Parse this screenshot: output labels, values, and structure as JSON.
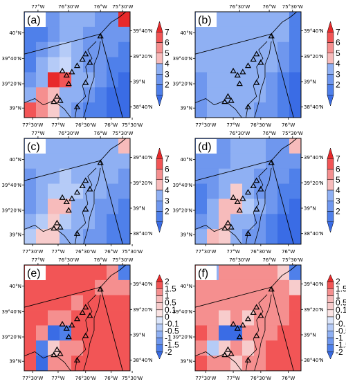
{
  "figure": {
    "panels": [
      {
        "label": "(a)",
        "grid": [
          [
            "#6f97ee",
            "#6f97ee",
            "#6f97ee",
            "#8fb0f3",
            "#8fb0f3",
            "#8fb0f3",
            "#6f97ee",
            "#6f97ee",
            "#e8292a"
          ],
          [
            "#4f80ea",
            "#4f80ea",
            "#6f97ee",
            "#8fb0f3",
            "#8fb0f3",
            "#6f97ee",
            "#6f97ee",
            "#6f97ee",
            "#6f97ee"
          ],
          [
            "#4f80ea",
            "#6f97ee",
            "#8fb0f3",
            "#b5cbf7",
            "#8fb0f3",
            "#6f97ee",
            "#6f97ee",
            "#6f97ee",
            "#4f80ea"
          ],
          [
            "#4f80ea",
            "#8fb0f3",
            "#b5cbf7",
            "#c9d8fa",
            "#8fb0f3",
            "#6f97ee",
            "#6f97ee",
            "#4f80ea",
            "#4f80ea"
          ],
          [
            "#6f97ee",
            "#8fb0f3",
            "#e8292a",
            "#f25556",
            "#8fb0f3",
            "#8fb0f3",
            "#6f97ee",
            "#4f80ea",
            "#3a6ce5"
          ],
          [
            "#8fb0f3",
            "#f58f8f",
            "#f7bbbb",
            "#8fb0f3",
            "#8fb0f3",
            "#6f97ee",
            "#4f80ea",
            "#3a6ce5",
            "#3a6ce5"
          ],
          [
            "#f25556",
            "#f58f8f",
            "#f7cccc",
            "#8fb0f3",
            "#6f97ee",
            "#4f80ea",
            "#4f80ea",
            "#3a6ce5",
            "#3a6ce5"
          ]
        ]
      },
      {
        "label": "(b)",
        "grid": [
          [
            "#8fb0f3",
            "#8fb0f3",
            "#8fb0f3",
            "#8fb0f3",
            "#8fb0f3",
            "#8fb0f3",
            "#8fb0f3",
            "#8fb0f3",
            "#4f80ea"
          ],
          [
            "#8fb0f3",
            "#8fb0f3",
            "#8fb0f3",
            "#8fb0f3",
            "#8fb0f3",
            "#8fb0f3",
            "#8fb0f3",
            "#8fb0f3",
            "#4f80ea"
          ],
          [
            "#8fb0f3",
            "#8fb0f3",
            "#8fb0f3",
            "#8fb0f3",
            "#8fb0f3",
            "#8fb0f3",
            "#8fb0f3",
            "#6f97ee",
            "#4f80ea"
          ],
          [
            "#8fb0f3",
            "#8fb0f3",
            "#8fb0f3",
            "#8fb0f3",
            "#8fb0f3",
            "#8fb0f3",
            "#8fb0f3",
            "#6f97ee",
            "#4f80ea"
          ],
          [
            "#6f97ee",
            "#8fb0f3",
            "#8fb0f3",
            "#8fb0f3",
            "#8fb0f3",
            "#8fb0f3",
            "#6f97ee",
            "#4f80ea",
            "#3a6ce5"
          ],
          [
            "#6f97ee",
            "#8fb0f3",
            "#8fb0f3",
            "#8fb0f3",
            "#8fb0f3",
            "#8fb0f3",
            "#6f97ee",
            "#4f80ea",
            "#3a6ce5"
          ],
          [
            "#6f97ee",
            "#8fb0f3",
            "#8fb0f3",
            "#8fb0f3",
            "#8fb0f3",
            "#6f97ee",
            "#6f97ee",
            "#4f80ea",
            "#3a6ce5"
          ]
        ]
      },
      {
        "label": "(c)",
        "grid": [
          [
            "#8fb0f3",
            "#8fb0f3",
            "#8fb0f3",
            "#8fb0f3",
            "#8fb0f3",
            "#8fb0f3",
            "#8fb0f3",
            "#8fb0f3",
            "#f7bbbb"
          ],
          [
            "#8fb0f3",
            "#8fb0f3",
            "#8fb0f3",
            "#8fb0f3",
            "#8fb0f3",
            "#8fb0f3",
            "#8fb0f3",
            "#8fb0f3",
            "#8fb0f3"
          ],
          [
            "#6f97ee",
            "#8fb0f3",
            "#8fb0f3",
            "#b5cbf7",
            "#8fb0f3",
            "#8fb0f3",
            "#8fb0f3",
            "#8fb0f3",
            "#6f97ee"
          ],
          [
            "#6f97ee",
            "#8fb0f3",
            "#b5cbf7",
            "#b5cbf7",
            "#b5cbf7",
            "#8fb0f3",
            "#8fb0f3",
            "#6f97ee",
            "#6f97ee"
          ],
          [
            "#6f97ee",
            "#8fb0f3",
            "#f7bbbb",
            "#f7bbbb",
            "#8fb0f3",
            "#8fb0f3",
            "#6f97ee",
            "#6f97ee",
            "#4f80ea"
          ],
          [
            "#8fb0f3",
            "#b5cbf7",
            "#f7cccc",
            "#b5cbf7",
            "#8fb0f3",
            "#8fb0f3",
            "#6f97ee",
            "#4f80ea",
            "#4f80ea"
          ],
          [
            "#b5cbf7",
            "#f7cccc",
            "#f7cccc",
            "#8fb0f3",
            "#8fb0f3",
            "#6f97ee",
            "#6f97ee",
            "#4f80ea",
            "#4f80ea"
          ]
        ]
      },
      {
        "label": "(d)",
        "grid": [
          [
            "#6f97ee",
            "#6f97ee",
            "#6f97ee",
            "#8fb0f3",
            "#8fb0f3",
            "#8fb0f3",
            "#6f97ee",
            "#6f97ee",
            "#f7bbbb"
          ],
          [
            "#6f97ee",
            "#6f97ee",
            "#6f97ee",
            "#8fb0f3",
            "#8fb0f3",
            "#8fb0f3",
            "#6f97ee",
            "#6f97ee",
            "#6f97ee"
          ],
          [
            "#6f97ee",
            "#6f97ee",
            "#8fb0f3",
            "#8fb0f3",
            "#8fb0f3",
            "#6f97ee",
            "#6f97ee",
            "#6f97ee",
            "#4f80ea"
          ],
          [
            "#4f80ea",
            "#6f97ee",
            "#8fb0f3",
            "#f7cccc",
            "#8fb0f3",
            "#6f97ee",
            "#6f97ee",
            "#4f80ea",
            "#4f80ea"
          ],
          [
            "#4f80ea",
            "#8fb0f3",
            "#f7bbbb",
            "#f7bbbb",
            "#b5cbf7",
            "#8fb0f3",
            "#6f97ee",
            "#4f80ea",
            "#3a6ce5"
          ],
          [
            "#6f97ee",
            "#8fb0f3",
            "#f7bbbb",
            "#8fb0f3",
            "#8fb0f3",
            "#6f97ee",
            "#4f80ea",
            "#3a6ce5",
            "#3a6ce5"
          ],
          [
            "#8fb0f3",
            "#f7bbbb",
            "#f7cccc",
            "#8fb0f3",
            "#6f97ee",
            "#6f97ee",
            "#4f80ea",
            "#3a6ce5",
            "#3a6ce5"
          ]
        ]
      },
      {
        "label": "(e)",
        "grid": [
          [
            "#f25556",
            "#f25556",
            "#f25556",
            "#f25556",
            "#f25556",
            "#f25556",
            "#f25556",
            "#f58f8f",
            "#4f80ea"
          ],
          [
            "#f25556",
            "#f25556",
            "#f25556",
            "#f25556",
            "#f25556",
            "#f25556",
            "#f58f8f",
            "#f58f8f",
            "#f58f8f"
          ],
          [
            "#f25556",
            "#f25556",
            "#f25556",
            "#f25556",
            "#f58f8f",
            "#f25556",
            "#f25556",
            "#f25556",
            "#f25556"
          ],
          [
            "#f25556",
            "#f25556",
            "#f58f8f",
            "#f58f8f",
            "#f25556",
            "#f25556",
            "#f25556",
            "#f25556",
            "#f25556"
          ],
          [
            "#f25556",
            "#f58f8f",
            "#3a6ce5",
            "#4f80ea",
            "#f25556",
            "#f25556",
            "#f25556",
            "#f25556",
            "#f25556"
          ],
          [
            "#f25556",
            "#4f80ea",
            "#f7cccc",
            "#f58f8f",
            "#f58f8f",
            "#f25556",
            "#f25556",
            "#f25556",
            "#f25556"
          ],
          [
            "#f25556",
            "#3a6ce5",
            "#f58f8f",
            "#f58f8f",
            "#f25556",
            "#f25556",
            "#f25556",
            "#f25556",
            "#f25556"
          ]
        ]
      },
      {
        "label": "(f)",
        "grid": [
          [
            "#f58f8f",
            "#8fb0f3",
            "#f58f8f",
            "#f58f8f",
            "#f58f8f",
            "#f58f8f",
            "#f58f8f",
            "#f7cccc",
            "#4f80ea"
          ],
          [
            "#f58f8f",
            "#f58f8f",
            "#f58f8f",
            "#f58f8f",
            "#f58f8f",
            "#f58f8f",
            "#f58f8f",
            "#f58f8f",
            "#f7cccc"
          ],
          [
            "#f58f8f",
            "#f58f8f",
            "#f58f8f",
            "#f58f8f",
            "#f58f8f",
            "#f58f8f",
            "#f58f8f",
            "#f58f8f",
            "#f25556"
          ],
          [
            "#f58f8f",
            "#f58f8f",
            "#f7cccc",
            "#f58f8f",
            "#f7cccc",
            "#f58f8f",
            "#f58f8f",
            "#f58f8f",
            "#f25556"
          ],
          [
            "#f25556",
            "#f58f8f",
            "#3a6ce5",
            "#3a6ce5",
            "#f58f8f",
            "#f58f8f",
            "#f58f8f",
            "#f25556",
            "#f25556"
          ],
          [
            "#f58f8f",
            "#b5cbf7",
            "#f7cccc",
            "#f58f8f",
            "#f7cccc",
            "#f58f8f",
            "#f25556",
            "#f25556",
            "#f25556"
          ],
          [
            "#f25556",
            "#f58f8f",
            "#f58f8f",
            "#f7cccc",
            "#f58f8f",
            "#f58f8f",
            "#f25556",
            "#f25556",
            "#f25556"
          ]
        ]
      }
    ],
    "top_ticks_a": [
      "77°W",
      "76°30'W",
      "76°W",
      "75°30'W"
    ],
    "top_ticks_b": [
      "76°30'W",
      "76°W",
      "75°30'W"
    ],
    "bottom_ticks_a": [
      "77°30'W",
      "77°W",
      "76°30'W",
      "76°W",
      "75°30'W"
    ],
    "bottom_ticks_b": [
      "77°30'W",
      "77°W",
      "76°30'W",
      "76°W"
    ],
    "left_ticks": [
      "40°N",
      "39°40'N",
      "39°20'N",
      "39°N"
    ],
    "right_ticks": [
      "39°40'N",
      "39°20'N",
      "39°N",
      "38°40'N"
    ],
    "colorbar_abs": {
      "labels": [
        "7",
        "6",
        "5",
        "4",
        "3",
        "2"
      ],
      "colors": [
        "#e8292a",
        "#f25556",
        "#f58f8f",
        "#f7bbbb",
        "#8fb0f3",
        "#6f97ee",
        "#4f80ea",
        "#3a6ce5"
      ]
    },
    "colorbar_diff": {
      "labels": [
        "2",
        "1.5",
        "1",
        "0.5",
        "0.1",
        "0",
        "-0.1",
        "-0.5",
        "-1",
        "-1.5",
        "-2"
      ],
      "colors": [
        "#e8292a",
        "#f25556",
        "#f58f8f",
        "#f7bbbb",
        "#f7cccc",
        "#fbe4e4",
        "#dce6fb",
        "#b5cbf7",
        "#8fb0f3",
        "#6f97ee",
        "#4f80ea",
        "#3a6ce5"
      ]
    }
  }
}
